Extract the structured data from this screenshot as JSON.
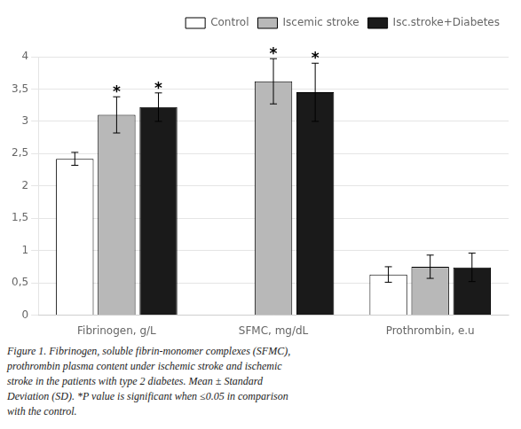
{
  "chart_data": {
    "type": "bar",
    "categories": [
      "Fibrinogen, g/L",
      "SFMC, mg/dL",
      "Prothrombin, e.u"
    ],
    "series": [
      {
        "name": "Control",
        "color": "#ffffff",
        "values": [
          2.42,
          0.0,
          0.63
        ],
        "errors": [
          0.1,
          0.0,
          0.12
        ]
      },
      {
        "name": "Iscemic stroke",
        "color": "#b8b8b8",
        "values": [
          3.1,
          3.62,
          0.75
        ],
        "errors": [
          0.28,
          0.35,
          0.18
        ]
      },
      {
        "name": "Isc.stroke+Diabetes",
        "color": "#1a1a1a",
        "values": [
          3.22,
          3.45,
          0.74
        ],
        "errors": [
          0.22,
          0.45,
          0.22
        ]
      }
    ],
    "ylim": [
      0,
      4.0
    ],
    "yticks": [
      0,
      {
        "value": 0.5,
        "label": "0,5"
      },
      1,
      {
        "value": 1.5,
        "label": "1,5"
      },
      2,
      {
        "value": 2.5,
        "label": "2,5"
      },
      3,
      {
        "value": 3.5,
        "label": "3,5"
      },
      4
    ],
    "grid": "y",
    "legend": "upper right",
    "annotations": [
      {
        "text": "*",
        "series": "Iscemic stroke",
        "category": "Fibrinogen, g/L"
      },
      {
        "text": "*",
        "series": "Isc.stroke+Diabetes",
        "category": "Fibrinogen, g/L"
      },
      {
        "text": "*",
        "series": "Iscemic stroke",
        "category": "SFMC, mg/dL"
      },
      {
        "text": "*",
        "series": "Isc.stroke+Diabetes",
        "category": "SFMC, mg/dL"
      }
    ],
    "caption": [
      "Figure 1. Fibrinogen, soluble fibrin-monomer complexes (SFMC),",
      "prothrombin plasma content under ischemic stroke and ischemic",
      "stroke in the patients with type 2 diabetes. Mean ± Standard",
      "Deviation (SD). *P value is significant when ≤0.05 in comparison",
      "with the control."
    ]
  }
}
